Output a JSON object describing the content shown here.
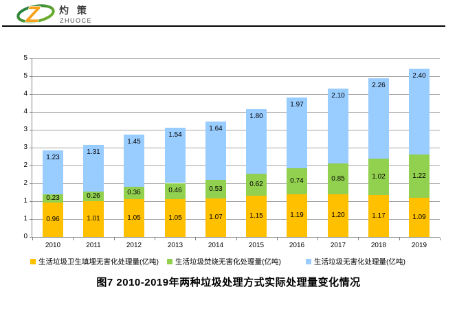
{
  "header": {
    "logo": {
      "brand_cn": "灼 策",
      "brand_en": "ZHUOCE"
    }
  },
  "chart_data": {
    "type": "bar",
    "stacked": true,
    "title": "图7  2010-2019年两种垃圾处理方式实际处理量变化情况",
    "categories": [
      "2010",
      "2011",
      "2012",
      "2013",
      "2014",
      "2015",
      "2016",
      "2017",
      "2018",
      "2019"
    ],
    "series": [
      {
        "name": "生活垃圾卫生填埋无害化处理量(亿吨)",
        "color": "#FFC000",
        "values": [
          0.96,
          1.01,
          1.05,
          1.05,
          1.07,
          1.15,
          1.19,
          1.2,
          1.17,
          1.09
        ]
      },
      {
        "name": "生活垃圾焚烧无害化处理量(亿吨)",
        "color": "#92D050",
        "values": [
          0.23,
          0.26,
          0.36,
          0.46,
          0.53,
          0.62,
          0.74,
          0.85,
          1.02,
          1.22
        ]
      },
      {
        "name": "生活垃圾无害化处理量(亿吨)",
        "color": "#99CCFF",
        "values": [
          1.23,
          1.31,
          1.45,
          1.54,
          1.64,
          1.8,
          1.97,
          2.1,
          2.26,
          2.4
        ]
      }
    ],
    "ylim": [
      0,
      5
    ],
    "ytick_step": 0.5,
    "ytick_labels_bottom_up": [
      "0",
      "1",
      "1",
      "2",
      "2",
      "3",
      "3",
      "4",
      "4",
      "5",
      "5"
    ],
    "grid": true,
    "legend_position": "bottom",
    "colors": {
      "grid": "#a0a0a0",
      "axis": "#808080",
      "label_text": "#000000"
    }
  }
}
